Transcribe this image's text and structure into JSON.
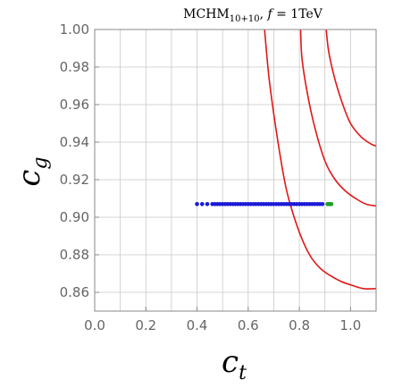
{
  "chart_data": {
    "type": "scatter",
    "title": {
      "prefix": "MCHM",
      "subscript": "10+10",
      "separator": ", ",
      "param": "f",
      "equals": " = 1TeV"
    },
    "xlabel": {
      "base": "c",
      "sub": "t"
    },
    "ylabel": {
      "base": "c",
      "sub": "g"
    },
    "xlim": [
      0.0,
      1.1
    ],
    "ylim": [
      0.85,
      1.0
    ],
    "xticks": [
      0.0,
      0.2,
      0.4,
      0.6,
      0.8,
      1.0
    ],
    "xtick_labels": [
      "0.0",
      "0.2",
      "0.4",
      "0.6",
      "0.8",
      "1.0"
    ],
    "yticks": [
      0.86,
      0.88,
      0.9,
      0.92,
      0.94,
      0.96,
      0.98,
      1.0
    ],
    "ytick_labels": [
      "0.86",
      "0.88",
      "0.90",
      "0.92",
      "0.94",
      "0.96",
      "0.98",
      "1.00"
    ],
    "grid": true,
    "colors": {
      "blue_points": "#1a1ad6",
      "green_points": "#1f9e1f",
      "contours": "#e01818",
      "grid": "#c8c8c8",
      "frame": "#888888"
    },
    "series": [
      {
        "kind": "points",
        "color": "blue",
        "y": 0.907,
        "x": [
          0.4,
          0.42,
          0.44,
          0.46,
          0.47,
          0.48,
          0.49,
          0.5,
          0.51,
          0.52,
          0.53,
          0.54,
          0.55,
          0.56,
          0.57,
          0.58,
          0.59,
          0.6,
          0.61,
          0.62,
          0.63,
          0.64,
          0.65,
          0.66,
          0.67,
          0.68,
          0.69,
          0.7,
          0.71,
          0.72,
          0.73,
          0.74,
          0.75,
          0.76,
          0.77,
          0.78,
          0.79,
          0.8,
          0.81,
          0.82,
          0.83,
          0.84,
          0.85,
          0.86,
          0.87,
          0.88,
          0.89
        ]
      },
      {
        "kind": "points",
        "color": "green",
        "y": 0.907,
        "x": [
          0.91,
          0.915,
          0.92,
          0.925
        ]
      },
      {
        "kind": "curve",
        "color": "red",
        "points": [
          [
            0.664,
            1.0
          ],
          [
            0.68,
            0.976
          ],
          [
            0.7,
            0.955
          ],
          [
            0.72,
            0.937
          ],
          [
            0.74,
            0.921
          ],
          [
            0.76,
            0.909
          ],
          [
            0.8,
            0.892
          ],
          [
            0.84,
            0.88
          ],
          [
            0.88,
            0.873
          ],
          [
            0.92,
            0.869
          ],
          [
            0.96,
            0.866
          ],
          [
            1.0,
            0.864
          ],
          [
            1.05,
            0.862
          ],
          [
            1.1,
            0.862
          ]
        ]
      },
      {
        "kind": "curve",
        "color": "red",
        "points": [
          [
            0.805,
            1.0
          ],
          [
            0.81,
            0.985
          ],
          [
            0.83,
            0.967
          ],
          [
            0.86,
            0.948
          ],
          [
            0.9,
            0.93
          ],
          [
            0.94,
            0.92
          ],
          [
            0.98,
            0.914
          ],
          [
            1.02,
            0.91
          ],
          [
            1.06,
            0.907
          ],
          [
            1.1,
            0.906
          ]
        ]
      },
      {
        "kind": "curve",
        "color": "red",
        "points": [
          [
            0.905,
            1.0
          ],
          [
            0.915,
            0.988
          ],
          [
            0.94,
            0.973
          ],
          [
            0.97,
            0.96
          ],
          [
            1.0,
            0.95
          ],
          [
            1.04,
            0.943
          ],
          [
            1.08,
            0.939
          ],
          [
            1.1,
            0.938
          ]
        ]
      }
    ]
  }
}
